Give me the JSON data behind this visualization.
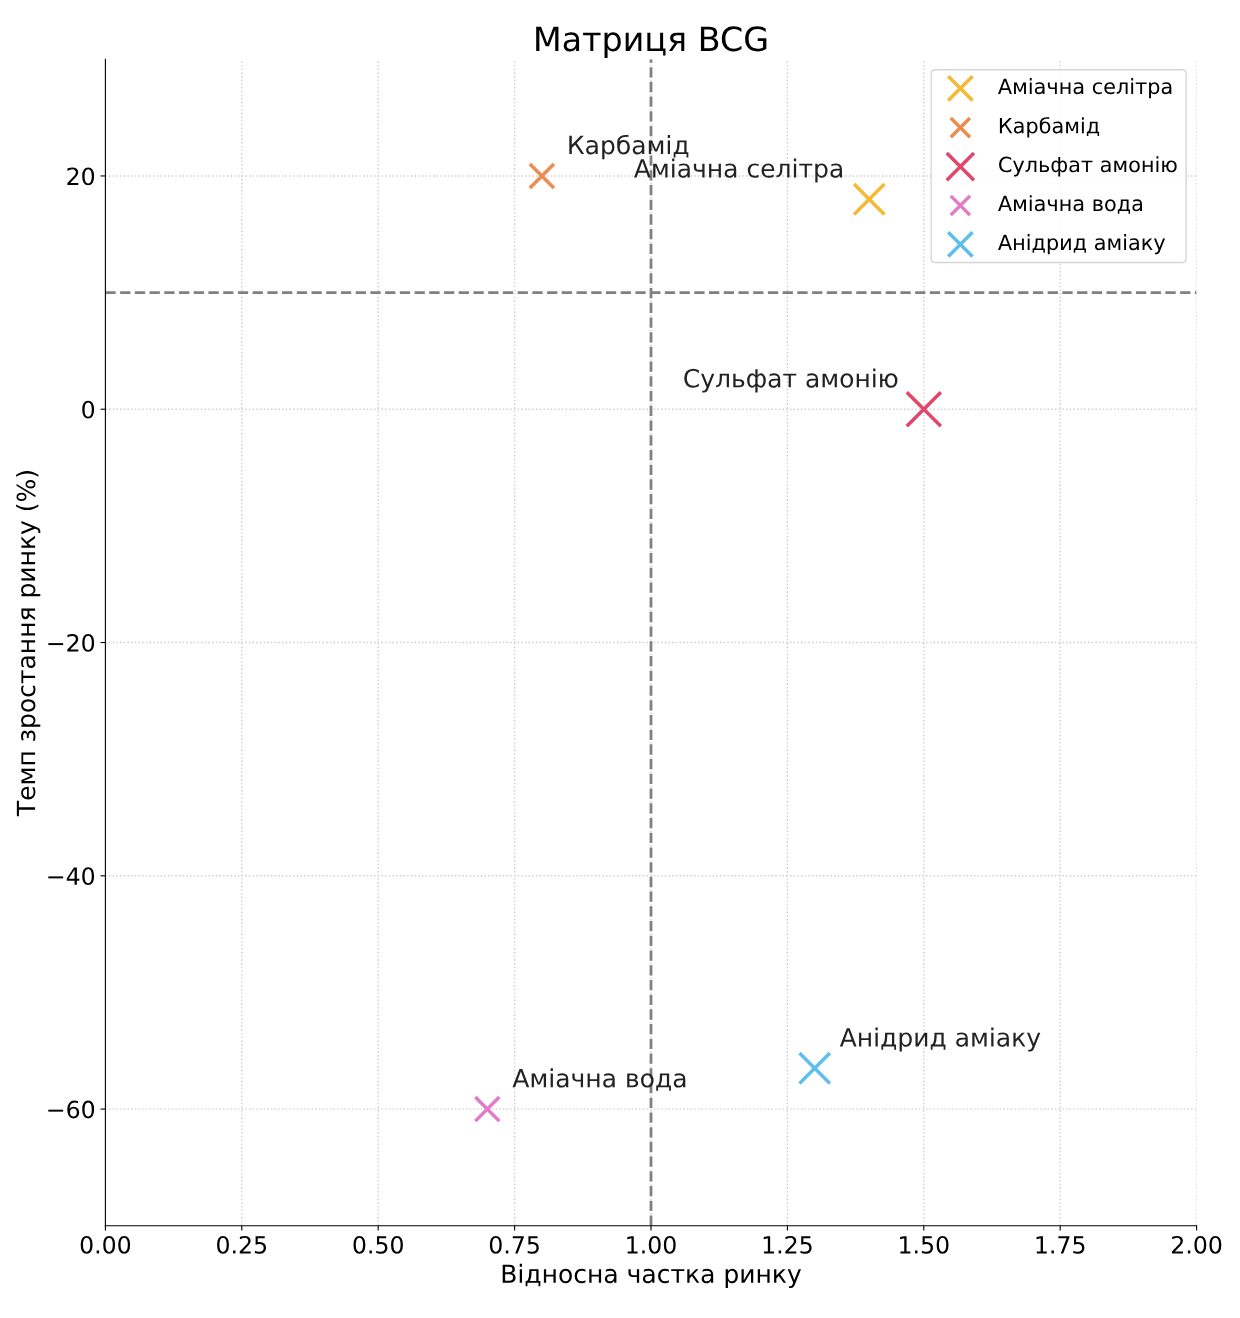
{
  "chart_data": {
    "type": "bubble",
    "title": "Матриця BCG",
    "xlabel": "Відносна частка ринку",
    "ylabel": "Темп зростання ринку (%)",
    "series": [
      {
        "name": "Аміачна селітра",
        "color": "#f5b935",
        "x": [
          1.4
        ],
        "values": [
          18
        ],
        "sizes": [
          0.8
        ]
      },
      {
        "name": "Карбамід",
        "color": "#ee8c4f",
        "x": [
          0.8
        ],
        "values": [
          20
        ],
        "sizes": [
          0.5
        ]
      },
      {
        "name": "Сульфат амонію",
        "color": "#e0476b",
        "x": [
          1.5
        ],
        "values": [
          0
        ],
        "sizes": [
          1
        ]
      },
      {
        "name": "Аміачна вода",
        "color": "#e27ac8",
        "x": [
          0.7
        ],
        "values": [
          -60
        ],
        "sizes": [
          0.5
        ]
      },
      {
        "name": "Анідрид аміаку",
        "color": "#5ebfef",
        "x": [
          1.3
        ],
        "values": [
          -56.5
        ],
        "sizes": [
          0.8
        ]
      }
    ],
    "xlim": [
      0,
      2
    ],
    "ylim": [
      -70,
      30
    ],
    "xticks": [
      {
        "value": 0,
        "label": "0.00"
      },
      {
        "value": 0.25,
        "label": "0.25"
      },
      {
        "value": 0.5,
        "label": "0.50"
      },
      {
        "value": 0.75,
        "label": "0.75"
      },
      {
        "value": 1,
        "label": "1.00"
      },
      {
        "value": 1.25,
        "label": "1.25"
      },
      {
        "value": 1.5,
        "label": "1.50"
      },
      {
        "value": 1.75,
        "label": "1.75"
      },
      {
        "value": 2,
        "label": "2.00"
      }
    ],
    "yticks": [
      -60,
      -40,
      -20,
      0,
      20
    ],
    "ref_lines": [
      {
        "axis": "x",
        "value": 1,
        "label": null,
        "color": "#808080",
        "line_style": "dashed"
      },
      {
        "axis": "y",
        "value": 10,
        "label": null,
        "color": "#808080",
        "line_style": "dashed"
      }
    ],
    "marker": "cross",
    "grid": true,
    "legend": "top right"
  }
}
